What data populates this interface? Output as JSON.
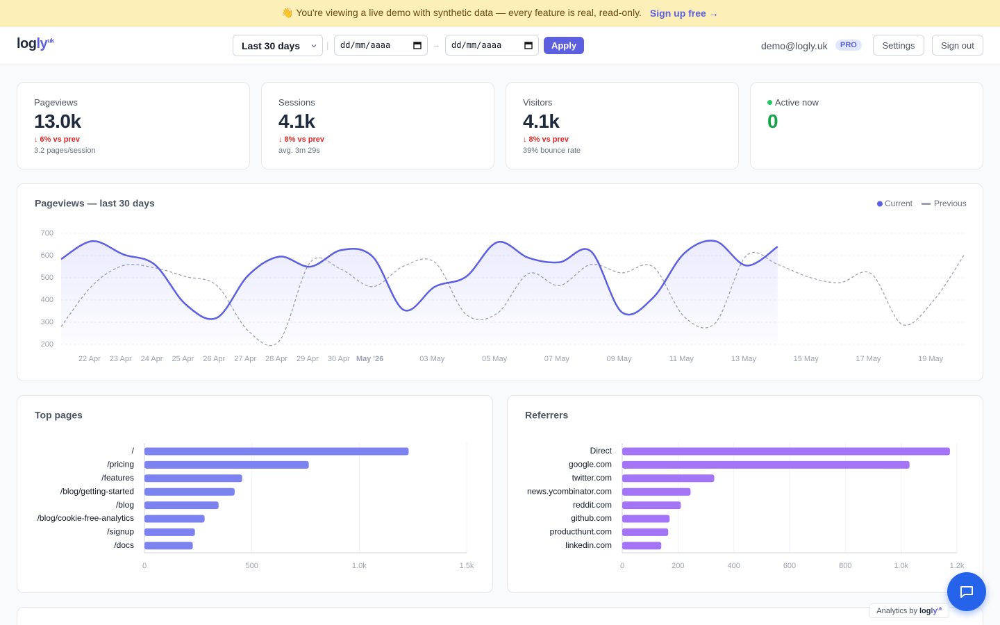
{
  "banner": {
    "text": "👋 You're viewing a live demo with synthetic data — every feature is real, read-only.",
    "link": "Sign up free →"
  },
  "logo": {
    "main": "log",
    "accent": "ly",
    "sup": "uk"
  },
  "header": {
    "range_select": "Last 30 days",
    "separator": "|",
    "date_from": "dd/mm/aaaa",
    "arrow": "→",
    "date_to": "dd/mm/aaaa",
    "apply": "Apply",
    "email": "demo@logly.uk",
    "plan": "PRO",
    "settings": "Settings",
    "sign_out": "Sign out"
  },
  "stats": [
    {
      "label": "Pageviews",
      "value": "13.0k",
      "delta": "↓ 6% vs prev",
      "note": "3.2 pages/session"
    },
    {
      "label": "Sessions",
      "value": "4.1k",
      "delta": "↓ 8% vs prev",
      "note": "avg. 3m 29s"
    },
    {
      "label": "Visitors",
      "value": "4.1k",
      "delta": "↓ 8% vs prev",
      "note": "39% bounce rate"
    },
    {
      "label": "Active now",
      "value": "0"
    }
  ],
  "chart_data": [
    {
      "type": "line",
      "title": "Pageviews — last 30 days",
      "categories": [
        null,
        "22 Apr",
        "23 Apr",
        "24 Apr",
        "25 Apr",
        "26 Apr",
        "27 Apr",
        "28 Apr",
        "29 Apr",
        "30 Apr",
        "May '26",
        null,
        "03 May",
        null,
        "05 May",
        null,
        "07 May",
        null,
        "09 May",
        null,
        "11 May",
        null,
        "13 May",
        null,
        "15 May",
        null,
        "17 May",
        null,
        "19 May",
        null
      ],
      "series": [
        {
          "name": "Current",
          "color": "#5b5fe0",
          "dashed": false,
          "fill": true,
          "values": [
            584,
            665,
            605,
            560,
            380,
            320,
            510,
            595,
            550,
            625,
            595,
            355,
            460,
            505,
            660,
            590,
            570,
            620,
            345,
            410,
            610,
            665,
            555,
            640,
            null,
            null,
            null,
            null,
            null,
            null
          ]
        },
        {
          "name": "Previous",
          "color": "#9ca3af",
          "dashed": true,
          "fill": false,
          "values": [
            280,
            465,
            555,
            545,
            505,
            465,
            262,
            215,
            570,
            537,
            460,
            553,
            569,
            335,
            340,
            519,
            465,
            560,
            522,
            550,
            325,
            297,
            600,
            560,
            503,
            478,
            519,
            290,
            397,
            606
          ]
        }
      ],
      "ylim": [
        200,
        700
      ],
      "yticks": [
        200,
        300,
        400,
        500,
        600,
        700
      ],
      "grid": true,
      "legend": "top-right"
    },
    {
      "type": "bar",
      "title": "Top pages",
      "categories": [
        "/",
        "/pricing",
        "/features",
        "/blog/getting-started",
        "/blog",
        "/blog/cookie-free-analytics",
        "/signup",
        "/docs"
      ],
      "values": [
        1230,
        765,
        455,
        420,
        345,
        280,
        235,
        225
      ],
      "color": "#7c83f0",
      "xlim": [
        0,
        1500
      ],
      "xticks": [
        0,
        500,
        {
          "value": 1000,
          "label": "1.0k"
        },
        {
          "value": 1500,
          "label": "1.5k"
        }
      ],
      "grid": true
    },
    {
      "type": "bar",
      "title": "Referrers",
      "categories": [
        "Direct",
        "google.com",
        "twitter.com",
        "news.ycombinator.com",
        "reddit.com",
        "github.com",
        "producthunt.com",
        "linkedin.com"
      ],
      "values": [
        1175,
        1030,
        330,
        245,
        210,
        170,
        165,
        140
      ],
      "color": "#a374f5",
      "xlim": [
        0,
        1200
      ],
      "xticks": [
        0,
        200,
        400,
        600,
        800,
        {
          "value": 1000,
          "label": "1.0k"
        },
        {
          "value": 1200,
          "label": "1.2k"
        }
      ],
      "grid": true
    }
  ],
  "badge": {
    "text": "Analytics by"
  }
}
